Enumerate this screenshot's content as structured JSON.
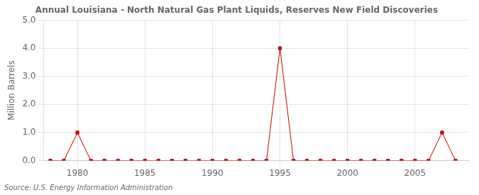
{
  "chart_data": {
    "type": "line",
    "title": "Annual Louisiana - North Natural Gas Plant Liquids, Reserves New Field Discoveries",
    "ylabel": "Million Barrels",
    "annotations": [
      "Source: U.S. Energy Information Administration"
    ],
    "x": [
      1978,
      1979,
      1980,
      1981,
      1982,
      1983,
      1984,
      1985,
      1986,
      1987,
      1988,
      1989,
      1990,
      1991,
      1992,
      1993,
      1994,
      1995,
      1996,
      1997,
      1998,
      1999,
      2000,
      2001,
      2002,
      2003,
      2004,
      2005,
      2006,
      2007,
      2008
    ],
    "values": [
      0.0,
      0.0,
      1.0,
      0.0,
      0.0,
      0.0,
      0.0,
      0.0,
      0.0,
      0.0,
      0.0,
      0.0,
      0.0,
      0.0,
      0.0,
      0.0,
      0.0,
      4.0,
      0.0,
      0.0,
      0.0,
      0.0,
      0.0,
      0.0,
      0.0,
      0.0,
      0.0,
      0.0,
      0.0,
      1.0,
      0.0
    ],
    "color": "#cc0000",
    "marker": "square",
    "xlim": [
      1977.5,
      2009
    ],
    "xticks": [
      1980,
      1985,
      1990,
      1995,
      2000,
      2005
    ],
    "ylim": [
      0.0,
      5.0
    ],
    "yticks": [
      {
        "value": 0.0,
        "label": "0.0"
      },
      {
        "value": 1.0,
        "label": "1.0"
      },
      {
        "value": 2.0,
        "label": "2.0"
      },
      {
        "value": 3.0,
        "label": "3.0"
      },
      {
        "value": 4.0,
        "label": "4.0"
      },
      {
        "value": 5.0,
        "label": "5.0"
      }
    ],
    "grid": true
  }
}
